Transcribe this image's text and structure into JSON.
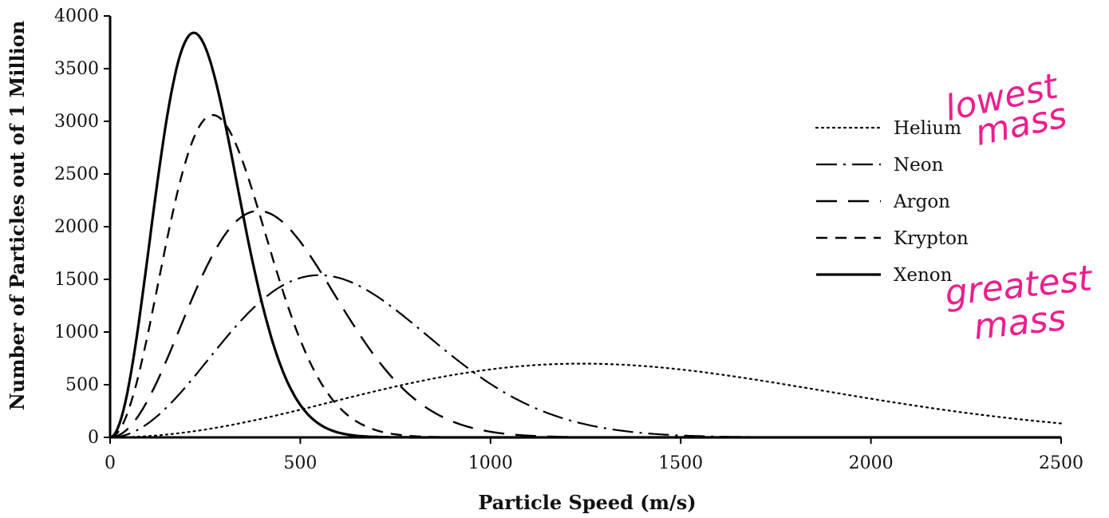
{
  "chart_data": {
    "type": "line",
    "xlabel": "Particle Speed (m/s)",
    "ylabel": "Number of Particles out of 1 Million",
    "xlim": [
      0,
      2500
    ],
    "ylim": [
      0,
      4000
    ],
    "x_ticks": [
      "0",
      "500",
      "1000",
      "1500",
      "2000",
      "2500"
    ],
    "y_ticks": [
      "0",
      "500",
      "1000",
      "1500",
      "2000",
      "2500",
      "3000",
      "3500",
      "4000"
    ],
    "grid": false,
    "legend_position": "right",
    "series": [
      {
        "name": "Helium",
        "line_style": "dotted",
        "peak_speed": 1240,
        "peak_count": 700
      },
      {
        "name": "Neon",
        "line_style": "dash-dot",
        "peak_speed": 550,
        "peak_count": 1540
      },
      {
        "name": "Argon",
        "line_style": "long-dash",
        "peak_speed": 390,
        "peak_count": 2150
      },
      {
        "name": "Krypton",
        "line_style": "short-dash",
        "peak_speed": 270,
        "peak_count": 3060
      },
      {
        "name": "Xenon",
        "line_style": "solid",
        "peak_speed": 220,
        "peak_count": 3840
      }
    ],
    "annotations": [
      {
        "text_lines": [
          "lowest",
          "mass"
        ],
        "color": "#ec1e8c",
        "near": "Helium"
      },
      {
        "text_lines": [
          "greatest",
          "mass"
        ],
        "color": "#ec1e8c",
        "near": "Xenon"
      }
    ]
  }
}
